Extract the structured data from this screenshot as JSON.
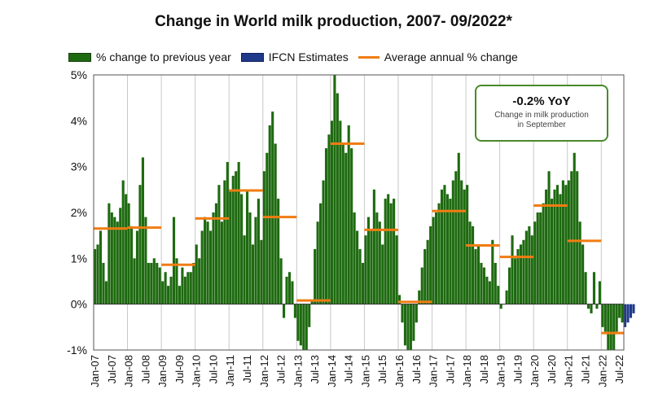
{
  "chart_data": {
    "type": "bar",
    "title": "Change in World milk production, 2007- 09/2022*",
    "legend": [
      {
        "label": "% change to previous year",
        "color": "#1e6a10",
        "kind": "bar"
      },
      {
        "label": "IFCN Estimates",
        "color": "#1f3a8a",
        "kind": "bar"
      },
      {
        "label": "Average annual % change",
        "color": "#f07c12",
        "kind": "line"
      }
    ],
    "ylim": [
      -1,
      5
    ],
    "yticks": [
      "-1%",
      "0%",
      "1%",
      "2%",
      "3%",
      "4%",
      "5%"
    ],
    "ytick_values": [
      -1,
      0,
      1,
      2,
      3,
      4,
      5
    ],
    "xtick_labels": [
      "Jan-07",
      "Jul-07",
      "Jan-08",
      "Jul-08",
      "Jan-09",
      "Jul-09",
      "Jan-10",
      "Jul-10",
      "Jan-11",
      "Jul-11",
      "Jan-12",
      "Jul-12",
      "Jan-13",
      "Jul-13",
      "Jan-14",
      "Jul-14",
      "Jan-15",
      "Jul-15",
      "Jan-16",
      "Jul-16",
      "Jan-17",
      "Jul-17",
      "Jan-18",
      "Jul-18",
      "Jan-19",
      "Jul-19",
      "Jan-20",
      "Jul-20",
      "Jan-21",
      "Jul-21",
      "Jan-22",
      "Jul-22"
    ],
    "grid": "vertical at Jan of each year",
    "series": [
      {
        "name": "% change to previous year",
        "color": "#1e6a10",
        "values": [
          1.2,
          1.3,
          1.6,
          0.9,
          0.5,
          2.2,
          2.0,
          1.9,
          1.8,
          2.1,
          2.7,
          2.4,
          2.2,
          1.7,
          1.0,
          1.6,
          2.6,
          3.2,
          1.9,
          0.9,
          0.9,
          1.0,
          0.9,
          0.8,
          0.5,
          0.7,
          0.4,
          0.6,
          1.9,
          1.0,
          0.4,
          0.8,
          0.6,
          0.7,
          0.7,
          0.9,
          1.3,
          1.0,
          1.6,
          1.9,
          1.8,
          1.6,
          2.0,
          2.2,
          2.6,
          1.8,
          2.7,
          3.1,
          2.5,
          2.8,
          2.9,
          3.1,
          2.4,
          1.5,
          2.5,
          2.0,
          1.3,
          1.9,
          2.3,
          1.4,
          2.9,
          3.3,
          3.9,
          4.2,
          3.5,
          2.3,
          1.0,
          -0.3,
          0.6,
          0.7,
          0.5,
          -0.3,
          -0.8,
          -0.9,
          -1.0,
          -1.0,
          -0.5,
          0.1,
          1.2,
          1.8,
          2.2,
          2.7,
          3.4,
          3.7,
          4.0,
          5.0,
          4.6,
          4.0,
          3.5,
          3.3,
          3.9,
          3.4,
          2.0,
          1.6,
          1.2,
          0.9,
          1.5,
          1.9,
          1.6,
          2.5,
          2.0,
          1.8,
          1.3,
          2.3,
          2.4,
          2.2,
          2.3,
          1.5,
          0.2,
          -0.4,
          -0.9,
          -1.0,
          -1.0,
          -0.8,
          -0.4,
          0.3,
          0.8,
          1.2,
          1.4,
          1.7,
          1.9,
          2.0,
          2.2,
          2.5,
          2.6,
          2.4,
          2.3,
          2.7,
          2.9,
          3.3,
          2.7,
          2.5,
          2.6,
          1.8,
          1.7,
          1.2,
          1.3,
          0.9,
          0.8,
          0.6,
          0.5,
          1.4,
          0.9,
          0.4,
          -0.1,
          0.0,
          0.3,
          0.8,
          1.5,
          1.0,
          1.2,
          1.3,
          1.4,
          1.6,
          1.7,
          1.5,
          1.8,
          2.0,
          2.0,
          2.2,
          2.5,
          2.9,
          2.3,
          2.5,
          2.6,
          2.4,
          2.7,
          2.6,
          2.7,
          2.9,
          3.3,
          2.9,
          1.8,
          1.3,
          0.7,
          -0.1,
          -0.2,
          0.7,
          -0.1,
          0.5,
          -0.5,
          -0.6,
          -1.0,
          -1.0,
          -1.0,
          -0.6,
          -0.3,
          -0.4
        ]
      },
      {
        "name": "IFCN Estimates",
        "color": "#1f3a8a",
        "start_index": 188,
        "values": [
          -0.5,
          -0.4,
          -0.3,
          -0.2
        ]
      }
    ],
    "averages": [
      {
        "year": 2007,
        "value": 1.65
      },
      {
        "year": 2008,
        "value": 1.67
      },
      {
        "year": 2009,
        "value": 0.86
      },
      {
        "year": 2010,
        "value": 1.87
      },
      {
        "year": 2011,
        "value": 2.48
      },
      {
        "year": 2012,
        "value": 1.9
      },
      {
        "year": 2013,
        "value": 0.08
      },
      {
        "year": 2014,
        "value": 3.5
      },
      {
        "year": 2015,
        "value": 1.62
      },
      {
        "year": 2016,
        "value": 0.05
      },
      {
        "year": 2017,
        "value": 2.03
      },
      {
        "year": 2018,
        "value": 1.28
      },
      {
        "year": 2019,
        "value": 1.03
      },
      {
        "year": 2020,
        "value": 2.15
      },
      {
        "year": 2021,
        "value": 1.38
      },
      {
        "year": 2022,
        "value": -0.63
      }
    ]
  },
  "callout": {
    "headline": "-0.2% YoY",
    "subtitle": "Change in milk production in September"
  }
}
